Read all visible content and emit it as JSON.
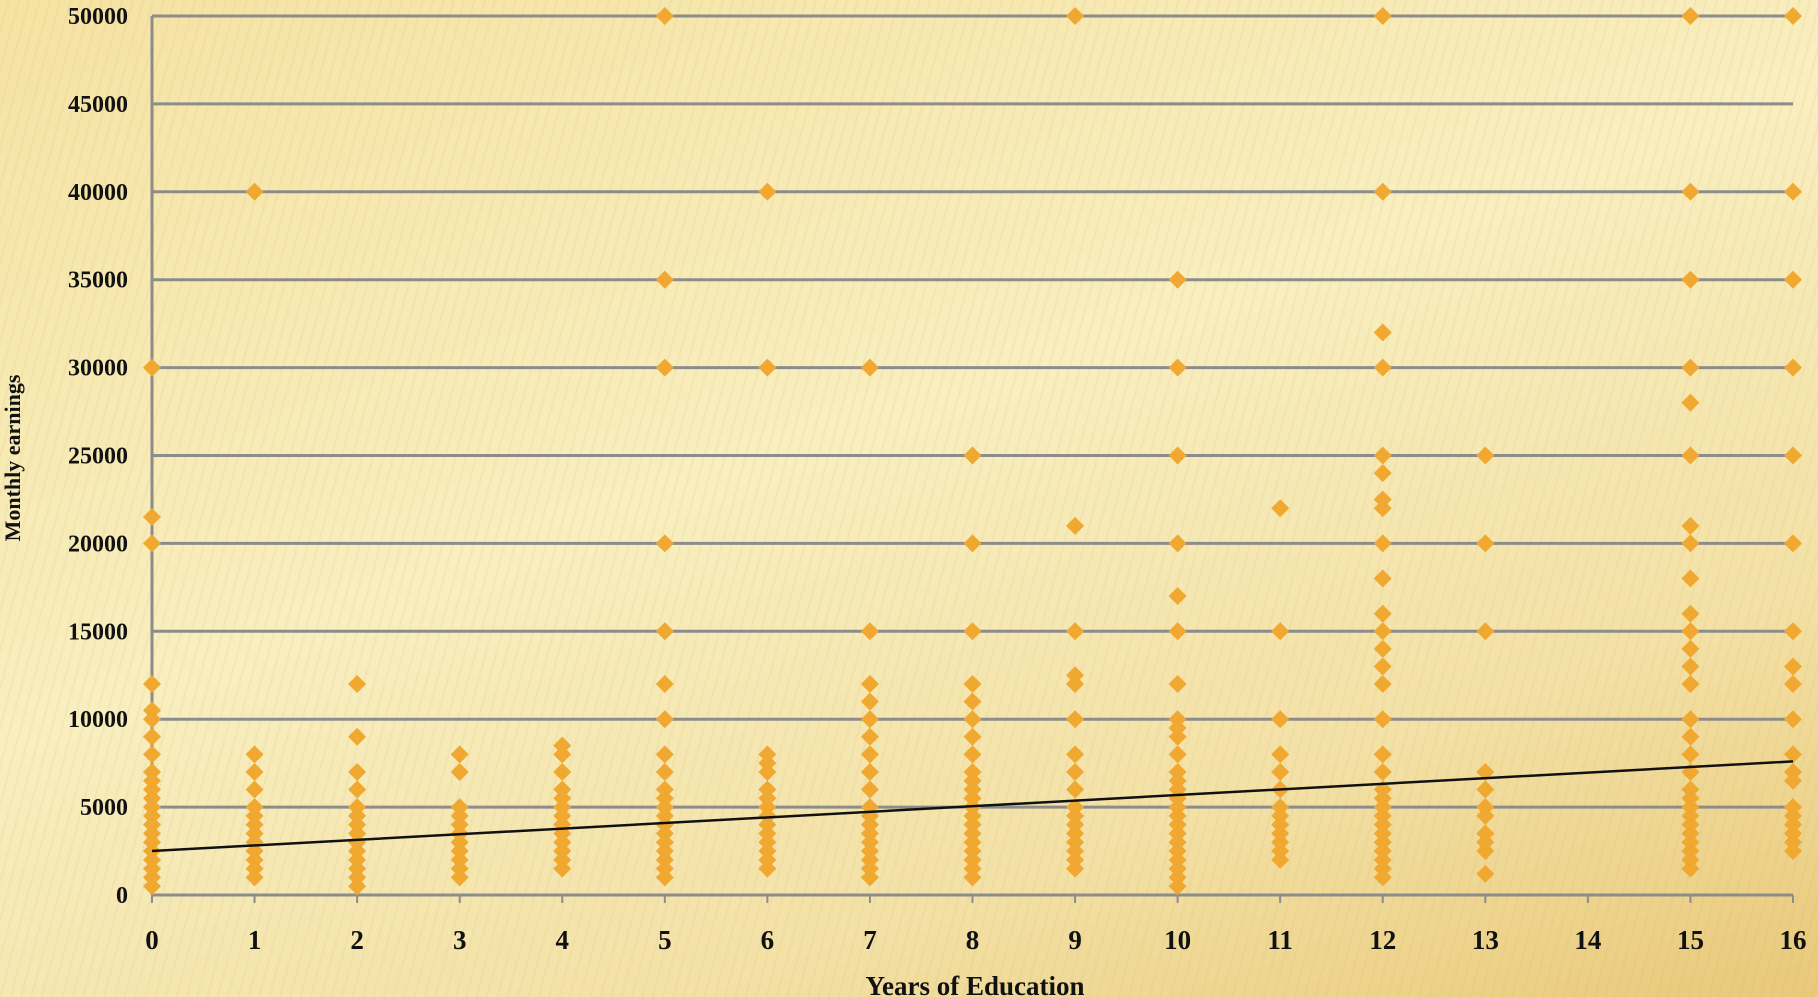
{
  "chart_data": {
    "type": "scatter",
    "xlabel": "Years of Education",
    "ylabel": "Monthly earnings",
    "xlim": [
      0,
      16
    ],
    "ylim": [
      0,
      50000
    ],
    "xticks": [
      0,
      1,
      2,
      3,
      4,
      5,
      6,
      7,
      8,
      9,
      10,
      11,
      12,
      13,
      14,
      15,
      16
    ],
    "yticks": [
      0,
      5000,
      10000,
      15000,
      20000,
      25000,
      30000,
      35000,
      40000,
      45000,
      50000
    ],
    "grid": "horizontal",
    "legend": "none",
    "marker": "diamond",
    "colors": {
      "points": "#f0a830",
      "trendline": "#111111",
      "grid": "#8c8c8c"
    },
    "trendline": {
      "x": [
        0,
        16
      ],
      "y": [
        2500,
        7600
      ]
    },
    "points": [
      [
        0,
        30000
      ],
      [
        0,
        21500
      ],
      [
        0,
        20000
      ],
      [
        0,
        12000
      ],
      [
        0,
        10500
      ],
      [
        0,
        10000
      ],
      [
        0,
        9000
      ],
      [
        0,
        8000
      ],
      [
        0,
        7000
      ],
      [
        0,
        6500
      ],
      [
        0,
        6000
      ],
      [
        0,
        5500
      ],
      [
        0,
        5000
      ],
      [
        0,
        4500
      ],
      [
        0,
        4000
      ],
      [
        0,
        3500
      ],
      [
        0,
        3000
      ],
      [
        0,
        2500
      ],
      [
        0,
        2000
      ],
      [
        0,
        1500
      ],
      [
        0,
        1000
      ],
      [
        0,
        500
      ],
      [
        1,
        40000
      ],
      [
        1,
        8000
      ],
      [
        1,
        7000
      ],
      [
        1,
        6000
      ],
      [
        1,
        5000
      ],
      [
        1,
        4500
      ],
      [
        1,
        4000
      ],
      [
        1,
        3500
      ],
      [
        1,
        3000
      ],
      [
        1,
        2500
      ],
      [
        1,
        2000
      ],
      [
        1,
        1500
      ],
      [
        1,
        1000
      ],
      [
        2,
        12000
      ],
      [
        2,
        9000
      ],
      [
        2,
        7000
      ],
      [
        2,
        6000
      ],
      [
        2,
        5000
      ],
      [
        2,
        4500
      ],
      [
        2,
        4000
      ],
      [
        2,
        3500
      ],
      [
        2,
        3000
      ],
      [
        2,
        2500
      ],
      [
        2,
        2000
      ],
      [
        2,
        1500
      ],
      [
        2,
        1000
      ],
      [
        2,
        500
      ],
      [
        3,
        8000
      ],
      [
        3,
        7000
      ],
      [
        3,
        5000
      ],
      [
        3,
        4500
      ],
      [
        3,
        4000
      ],
      [
        3,
        3500
      ],
      [
        3,
        3000
      ],
      [
        3,
        2500
      ],
      [
        3,
        2000
      ],
      [
        3,
        1500
      ],
      [
        3,
        1000
      ],
      [
        4,
        8500
      ],
      [
        4,
        8000
      ],
      [
        4,
        7000
      ],
      [
        4,
        6000
      ],
      [
        4,
        5500
      ],
      [
        4,
        5000
      ],
      [
        4,
        4500
      ],
      [
        4,
        4000
      ],
      [
        4,
        3500
      ],
      [
        4,
        3000
      ],
      [
        4,
        2500
      ],
      [
        4,
        2000
      ],
      [
        4,
        1500
      ],
      [
        5,
        50000
      ],
      [
        5,
        35000
      ],
      [
        5,
        30000
      ],
      [
        5,
        20000
      ],
      [
        5,
        15000
      ],
      [
        5,
        12000
      ],
      [
        5,
        10000
      ],
      [
        5,
        8000
      ],
      [
        5,
        7000
      ],
      [
        5,
        6000
      ],
      [
        5,
        5500
      ],
      [
        5,
        5000
      ],
      [
        5,
        4500
      ],
      [
        5,
        4000
      ],
      [
        5,
        3500
      ],
      [
        5,
        3000
      ],
      [
        5,
        2500
      ],
      [
        5,
        2000
      ],
      [
        5,
        1500
      ],
      [
        5,
        1000
      ],
      [
        6,
        40000
      ],
      [
        6,
        30000
      ],
      [
        6,
        8000
      ],
      [
        6,
        7500
      ],
      [
        6,
        7000
      ],
      [
        6,
        6000
      ],
      [
        6,
        5500
      ],
      [
        6,
        5000
      ],
      [
        6,
        4500
      ],
      [
        6,
        4000
      ],
      [
        6,
        3500
      ],
      [
        6,
        3000
      ],
      [
        6,
        2500
      ],
      [
        6,
        2000
      ],
      [
        6,
        1500
      ],
      [
        7,
        30000
      ],
      [
        7,
        15000
      ],
      [
        7,
        12000
      ],
      [
        7,
        11000
      ],
      [
        7,
        10000
      ],
      [
        7,
        9000
      ],
      [
        7,
        8000
      ],
      [
        7,
        7000
      ],
      [
        7,
        6000
      ],
      [
        7,
        5000
      ],
      [
        7,
        4500
      ],
      [
        7,
        4000
      ],
      [
        7,
        3500
      ],
      [
        7,
        3000
      ],
      [
        7,
        2500
      ],
      [
        7,
        2000
      ],
      [
        7,
        1500
      ],
      [
        7,
        1000
      ],
      [
        8,
        25000
      ],
      [
        8,
        20000
      ],
      [
        8,
        15000
      ],
      [
        8,
        12000
      ],
      [
        8,
        11000
      ],
      [
        8,
        10000
      ],
      [
        8,
        9000
      ],
      [
        8,
        8000
      ],
      [
        8,
        7000
      ],
      [
        8,
        6500
      ],
      [
        8,
        6000
      ],
      [
        8,
        5500
      ],
      [
        8,
        5000
      ],
      [
        8,
        4500
      ],
      [
        8,
        4000
      ],
      [
        8,
        3500
      ],
      [
        8,
        3000
      ],
      [
        8,
        2500
      ],
      [
        8,
        2000
      ],
      [
        8,
        1500
      ],
      [
        8,
        1000
      ],
      [
        9,
        50000
      ],
      [
        9,
        21000
      ],
      [
        9,
        15000
      ],
      [
        9,
        12500
      ],
      [
        9,
        12000
      ],
      [
        9,
        10000
      ],
      [
        9,
        8000
      ],
      [
        9,
        7000
      ],
      [
        9,
        6000
      ],
      [
        9,
        5000
      ],
      [
        9,
        4500
      ],
      [
        9,
        4000
      ],
      [
        9,
        3500
      ],
      [
        9,
        3000
      ],
      [
        9,
        2500
      ],
      [
        9,
        2000
      ],
      [
        9,
        1500
      ],
      [
        10,
        35000
      ],
      [
        10,
        30000
      ],
      [
        10,
        25000
      ],
      [
        10,
        20000
      ],
      [
        10,
        17000
      ],
      [
        10,
        15000
      ],
      [
        10,
        12000
      ],
      [
        10,
        10000
      ],
      [
        10,
        9500
      ],
      [
        10,
        9000
      ],
      [
        10,
        8000
      ],
      [
        10,
        7000
      ],
      [
        10,
        6500
      ],
      [
        10,
        6000
      ],
      [
        10,
        5500
      ],
      [
        10,
        5000
      ],
      [
        10,
        4500
      ],
      [
        10,
        4000
      ],
      [
        10,
        3500
      ],
      [
        10,
        3000
      ],
      [
        10,
        2500
      ],
      [
        10,
        2000
      ],
      [
        10,
        1500
      ],
      [
        10,
        1000
      ],
      [
        10,
        500
      ],
      [
        11,
        22000
      ],
      [
        11,
        15000
      ],
      [
        11,
        10000
      ],
      [
        11,
        8000
      ],
      [
        11,
        7000
      ],
      [
        11,
        6000
      ],
      [
        11,
        5000
      ],
      [
        11,
        4500
      ],
      [
        11,
        4000
      ],
      [
        11,
        3500
      ],
      [
        11,
        3000
      ],
      [
        11,
        2500
      ],
      [
        11,
        2000
      ],
      [
        12,
        50000
      ],
      [
        12,
        40000
      ],
      [
        12,
        32000
      ],
      [
        12,
        30000
      ],
      [
        12,
        25000
      ],
      [
        12,
        24000
      ],
      [
        12,
        22500
      ],
      [
        12,
        22000
      ],
      [
        12,
        20000
      ],
      [
        12,
        18000
      ],
      [
        12,
        16000
      ],
      [
        12,
        15000
      ],
      [
        12,
        14000
      ],
      [
        12,
        13000
      ],
      [
        12,
        12000
      ],
      [
        12,
        10000
      ],
      [
        12,
        8000
      ],
      [
        12,
        7000
      ],
      [
        12,
        6000
      ],
      [
        12,
        5500
      ],
      [
        12,
        5000
      ],
      [
        12,
        4500
      ],
      [
        12,
        4000
      ],
      [
        12,
        3500
      ],
      [
        12,
        3000
      ],
      [
        12,
        2500
      ],
      [
        12,
        2000
      ],
      [
        12,
        1500
      ],
      [
        12,
        1000
      ],
      [
        13,
        25000
      ],
      [
        13,
        20000
      ],
      [
        13,
        15000
      ],
      [
        13,
        7000
      ],
      [
        13,
        6000
      ],
      [
        13,
        5000
      ],
      [
        13,
        4500
      ],
      [
        13,
        3500
      ],
      [
        13,
        3000
      ],
      [
        13,
        2500
      ],
      [
        13,
        1200
      ],
      [
        15,
        50000
      ],
      [
        15,
        40000
      ],
      [
        15,
        35000
      ],
      [
        15,
        30000
      ],
      [
        15,
        28000
      ],
      [
        15,
        25000
      ],
      [
        15,
        21000
      ],
      [
        15,
        20000
      ],
      [
        15,
        18000
      ],
      [
        15,
        16000
      ],
      [
        15,
        15000
      ],
      [
        15,
        14000
      ],
      [
        15,
        13000
      ],
      [
        15,
        12000
      ],
      [
        15,
        10000
      ],
      [
        15,
        9000
      ],
      [
        15,
        8000
      ],
      [
        15,
        7000
      ],
      [
        15,
        6000
      ],
      [
        15,
        5500
      ],
      [
        15,
        5000
      ],
      [
        15,
        4500
      ],
      [
        15,
        4000
      ],
      [
        15,
        3500
      ],
      [
        15,
        3000
      ],
      [
        15,
        2500
      ],
      [
        15,
        2000
      ],
      [
        15,
        1500
      ],
      [
        16,
        50000
      ],
      [
        16,
        40000
      ],
      [
        16,
        35000
      ],
      [
        16,
        30000
      ],
      [
        16,
        25000
      ],
      [
        16,
        20000
      ],
      [
        16,
        15000
      ],
      [
        16,
        13000
      ],
      [
        16,
        12000
      ],
      [
        16,
        10000
      ],
      [
        16,
        8000
      ],
      [
        16,
        7000
      ],
      [
        16,
        6500
      ],
      [
        16,
        5000
      ],
      [
        16,
        4500
      ],
      [
        16,
        4000
      ],
      [
        16,
        3500
      ],
      [
        16,
        3000
      ],
      [
        16,
        2500
      ]
    ]
  }
}
